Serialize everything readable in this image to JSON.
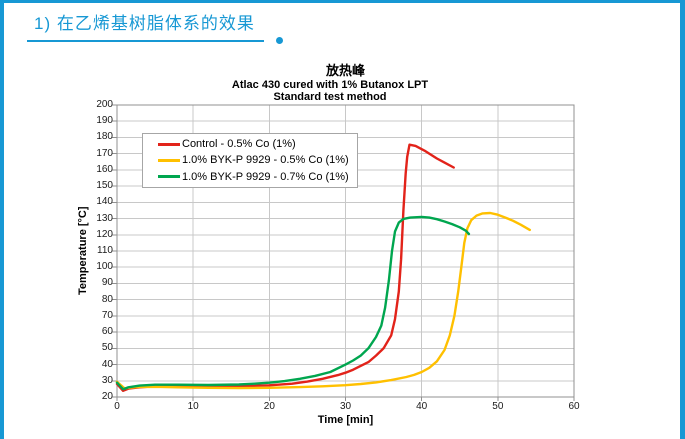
{
  "page": {
    "accent_color": "#1798d4",
    "background_color": "#ffffff"
  },
  "header": {
    "title": "1) 在乙烯基树脂体系的效果"
  },
  "chart_data": {
    "type": "line",
    "title": "放热峰",
    "subtitle1": "Atlac 430 cured with 1% Butanox LPT",
    "subtitle2": "Standard test method",
    "xlabel": "Time [min]",
    "ylabel": "Temperature [°C]",
    "xlim": [
      0,
      60
    ],
    "ylim": [
      20,
      200
    ],
    "xticks": [
      0,
      10,
      20,
      30,
      40,
      50,
      60
    ],
    "yticks": [
      20,
      30,
      40,
      50,
      60,
      70,
      80,
      90,
      100,
      110,
      120,
      130,
      140,
      150,
      160,
      170,
      180,
      190,
      200
    ],
    "grid": true,
    "legend_position": "upper-left-inside",
    "grid_color": "#c8c8c8",
    "axis_color": "#909090",
    "series": [
      {
        "name": "Control - 0.5% Co (1%)",
        "color": "#e2231a",
        "points": [
          [
            0,
            28
          ],
          [
            0.8,
            23.8
          ],
          [
            1.5,
            25.2
          ],
          [
            3,
            26
          ],
          [
            5,
            26.6
          ],
          [
            8,
            26.6
          ],
          [
            12,
            26.5
          ],
          [
            16,
            26.6
          ],
          [
            20,
            27.2
          ],
          [
            23,
            28.2
          ],
          [
            25,
            29.5
          ],
          [
            27,
            31.2
          ],
          [
            29,
            33.5
          ],
          [
            30,
            35
          ],
          [
            31,
            36.8
          ],
          [
            33,
            41.5
          ],
          [
            34,
            45.5
          ],
          [
            35,
            50
          ],
          [
            36,
            58
          ],
          [
            36.5,
            68
          ],
          [
            37,
            85
          ],
          [
            37.3,
            105
          ],
          [
            37.6,
            135
          ],
          [
            37.9,
            158
          ],
          [
            38.1,
            168
          ],
          [
            38.4,
            175.5
          ],
          [
            39.2,
            174.8
          ],
          [
            40.5,
            171.5
          ],
          [
            42,
            167
          ],
          [
            43,
            164.5
          ],
          [
            44.2,
            161.5
          ]
        ]
      },
      {
        "name": "1.0% BYK-P 9929 - 0.5% Co (1%)",
        "color": "#ffc000",
        "points": [
          [
            0,
            29.4
          ],
          [
            1,
            25.3
          ],
          [
            1.8,
            25.8
          ],
          [
            3,
            26.2
          ],
          [
            5,
            26.3
          ],
          [
            8,
            26
          ],
          [
            12,
            25.7
          ],
          [
            16,
            25.5
          ],
          [
            20,
            25.7
          ],
          [
            24,
            26.1
          ],
          [
            27,
            26.6
          ],
          [
            30,
            27.3
          ],
          [
            32,
            28
          ],
          [
            34,
            29
          ],
          [
            36,
            30.4
          ],
          [
            38,
            32.3
          ],
          [
            39,
            33.6
          ],
          [
            40,
            35.4
          ],
          [
            41,
            38
          ],
          [
            42,
            42
          ],
          [
            43,
            49
          ],
          [
            43.7,
            58
          ],
          [
            44.3,
            70
          ],
          [
            44.8,
            85
          ],
          [
            45.2,
            100
          ],
          [
            45.6,
            115
          ],
          [
            46,
            124
          ],
          [
            46.5,
            129
          ],
          [
            47.2,
            131.8
          ],
          [
            48,
            133.2
          ],
          [
            49,
            133.4
          ],
          [
            50,
            132.4
          ],
          [
            51,
            130.6
          ],
          [
            52,
            128.6
          ],
          [
            53,
            126.2
          ],
          [
            54.2,
            123
          ]
        ]
      },
      {
        "name": "1.0% BYK-P 9929 - 0.7% Co (1%)",
        "color": "#00a64f",
        "points": [
          [
            0,
            28.8
          ],
          [
            0.8,
            24.8
          ],
          [
            1.5,
            26
          ],
          [
            3,
            27
          ],
          [
            5,
            27.6
          ],
          [
            8,
            27.6
          ],
          [
            12,
            27.4
          ],
          [
            16,
            27.7
          ],
          [
            18,
            28.2
          ],
          [
            20,
            28.8
          ],
          [
            22,
            29.8
          ],
          [
            24,
            31.2
          ],
          [
            26,
            33
          ],
          [
            28,
            35.4
          ],
          [
            30,
            40
          ],
          [
            31,
            42.5
          ],
          [
            32,
            45.5
          ],
          [
            33,
            50
          ],
          [
            34,
            57
          ],
          [
            34.7,
            64
          ],
          [
            35.2,
            75
          ],
          [
            35.7,
            92
          ],
          [
            36.1,
            110
          ],
          [
            36.5,
            122
          ],
          [
            37,
            127.5
          ],
          [
            37.6,
            129.8
          ],
          [
            38.5,
            130.6
          ],
          [
            40,
            131
          ],
          [
            41,
            130.6
          ],
          [
            42,
            129.6
          ],
          [
            43,
            128.2
          ],
          [
            44,
            126.6
          ],
          [
            45,
            124.6
          ],
          [
            45.8,
            122.5
          ],
          [
            46.2,
            120.5
          ]
        ]
      }
    ]
  }
}
